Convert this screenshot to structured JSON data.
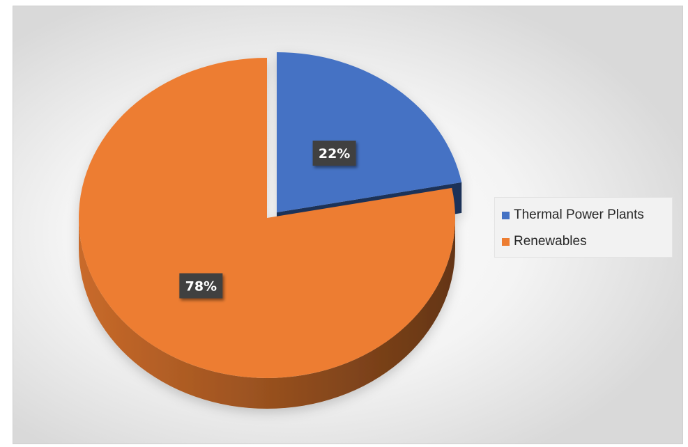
{
  "chart_data": {
    "type": "pie",
    "title": "",
    "categories": [
      "Thermal Power Plants",
      "Renewables"
    ],
    "values": [
      22,
      78
    ],
    "labels": [
      "22%",
      "78%"
    ],
    "colors": [
      "#4472c4",
      "#ed7d31"
    ],
    "legend": "right",
    "exploded": "Thermal Power Plants",
    "style": "3d"
  }
}
